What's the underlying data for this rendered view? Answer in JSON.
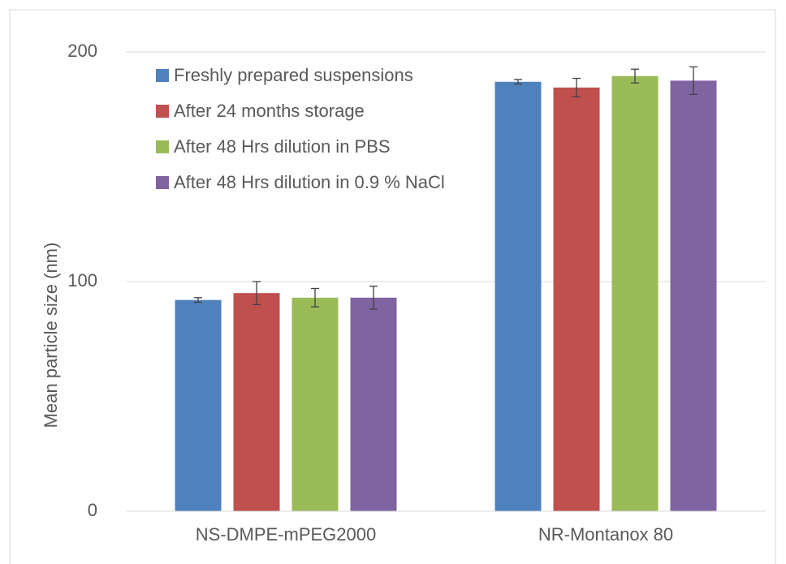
{
  "chart_data": {
    "type": "bar",
    "y_label": "Mean particle size  (nm)",
    "categories": [
      "NS-DMPE-mPEG2000",
      "NR-Montanox 80"
    ],
    "series": [
      {
        "name": "Freshly prepared suspensions",
        "color": "#4f81bd",
        "values": [
          92,
          187
        ],
        "errors": [
          1,
          1
        ]
      },
      {
        "name": "After 24 months storage",
        "color": "#c0504d",
        "values": [
          95,
          184.5
        ],
        "errors": [
          5,
          4
        ]
      },
      {
        "name": "After 48 Hrs dilution in PBS",
        "color": "#9bbb59",
        "values": [
          93,
          189.5
        ],
        "errors": [
          4,
          3
        ]
      },
      {
        "name": "After 48 Hrs dilution in 0.9 % NaCl",
        "color": "#8064a2",
        "values": [
          93,
          187.5
        ],
        "errors": [
          5,
          6
        ]
      }
    ],
    "ylim": [
      0,
      200
    ],
    "yticks": [
      0,
      100,
      200
    ],
    "grid": true,
    "legend": "top-left"
  }
}
